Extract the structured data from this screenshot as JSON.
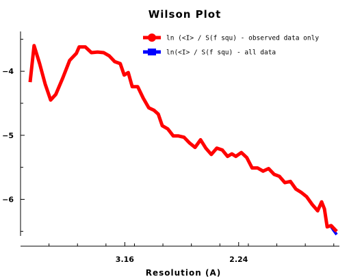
{
  "chart_data": {
    "type": "line",
    "title": "Wilson Plot",
    "xlabel": "Resolution (A)",
    "ylabel": "",
    "x_domain": [
      0.0,
      1.0
    ],
    "ylim": [
      -6.55,
      -3.4
    ],
    "y_ticks": [
      -4,
      -5,
      -6
    ],
    "x_tick_labels": [
      {
        "position": 0.327,
        "label": "3.16"
      },
      {
        "position": 0.684,
        "label": "2.24"
      }
    ],
    "grid": false,
    "legend_position": "top-right",
    "series": [
      {
        "name": "ln (<I> / S(f squ) - observed data only",
        "color": "#ff0000",
        "marker": "circle",
        "x": [
          0.0,
          0.013,
          0.031,
          0.049,
          0.067,
          0.084,
          0.107,
          0.129,
          0.151,
          0.16,
          0.18,
          0.2,
          0.22,
          0.24,
          0.258,
          0.276,
          0.294,
          0.307,
          0.32,
          0.333,
          0.351,
          0.369,
          0.387,
          0.404,
          0.418,
          0.431,
          0.449,
          0.467,
          0.484,
          0.502,
          0.52,
          0.538,
          0.556,
          0.573,
          0.591,
          0.609,
          0.627,
          0.644,
          0.658,
          0.671,
          0.689,
          0.707,
          0.724,
          0.742,
          0.76,
          0.778,
          0.796,
          0.813,
          0.831,
          0.849,
          0.867,
          0.884,
          0.902,
          0.92,
          0.938,
          0.951,
          0.96,
          0.969,
          0.982,
          1.0
        ],
        "y": [
          -4.17,
          -3.6,
          -3.88,
          -4.2,
          -4.45,
          -4.36,
          -4.1,
          -3.83,
          -3.72,
          -3.62,
          -3.62,
          -3.71,
          -3.7,
          -3.71,
          -3.76,
          -3.85,
          -3.88,
          -4.06,
          -4.02,
          -4.24,
          -4.24,
          -4.42,
          -4.57,
          -4.61,
          -4.67,
          -4.85,
          -4.9,
          -5.01,
          -5.01,
          -5.03,
          -5.12,
          -5.19,
          -5.07,
          -5.2,
          -5.3,
          -5.2,
          -5.23,
          -5.33,
          -5.29,
          -5.33,
          -5.27,
          -5.35,
          -5.51,
          -5.51,
          -5.56,
          -5.52,
          -5.61,
          -5.64,
          -5.74,
          -5.72,
          -5.84,
          -5.89,
          -5.96,
          -6.08,
          -6.18,
          -6.04,
          -6.15,
          -6.43,
          -6.41,
          -6.5
        ]
      },
      {
        "name": "ln(<I> / S(f squ) - all data",
        "color": "#0000ff",
        "marker": "square",
        "x": [
          0.978,
          0.989,
          1.0
        ],
        "y": [
          -6.4,
          -6.48,
          -6.55
        ]
      }
    ]
  }
}
